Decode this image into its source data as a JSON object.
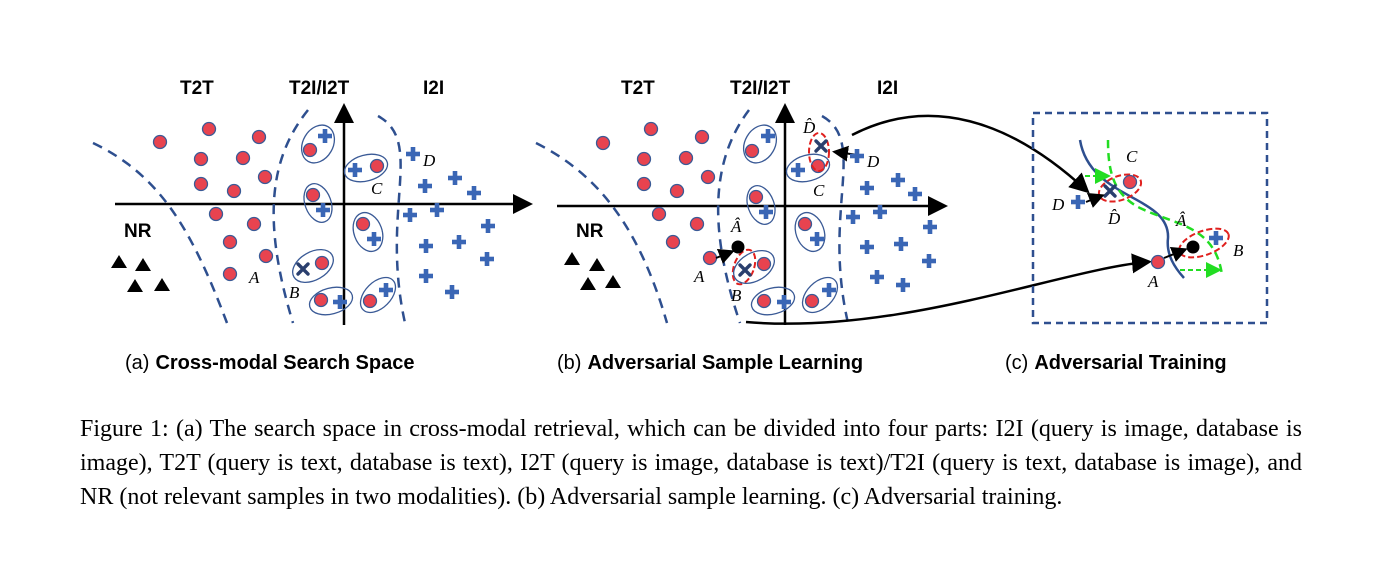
{
  "panel_a": {
    "regions": [
      "T2T",
      "T2I/I2T",
      "I2I"
    ],
    "nr_label": "NR",
    "points": [
      "A",
      "B",
      "C",
      "D"
    ],
    "caption_prefix": "(a)",
    "caption_title": "Cross-modal Search Space"
  },
  "panel_b": {
    "regions": [
      "T2T",
      "T2I/I2T",
      "I2I"
    ],
    "nr_label": "NR",
    "points": [
      "A",
      "B",
      "C",
      "D",
      "Â",
      "D̂"
    ],
    "caption_prefix": "(b)",
    "caption_title": "Adversarial Sample Learning"
  },
  "panel_c": {
    "points": [
      "C",
      "D",
      "D̂",
      "Â",
      "B",
      "A"
    ],
    "caption_prefix": "(c)",
    "caption_title": "Adversarial Training"
  },
  "figure_caption": "Figure 1: (a) The search space in cross-modal retrieval, which can be divided into four parts: I2I (query is image, database is image), T2T (query is text, database is text), I2T (query is image, database is text)/T2I (query is text, database is image), and NR (not relevant samples in two modalities). (b) Adversarial sample learning. (c) Adversarial training.",
  "colors": {
    "dot_fill": "#e8434f",
    "dot_stroke": "#3a5a96",
    "plus": "#3a66b5",
    "ellipse": "#3a5a96",
    "dashed": "#2e4f8f",
    "adv_ellipse": "#e0201e",
    "green": "#22dd22"
  }
}
